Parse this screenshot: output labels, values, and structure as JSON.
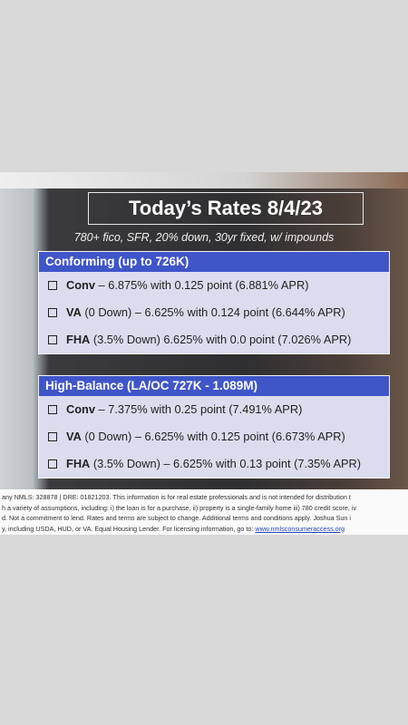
{
  "title": "Today’s Rates 8/4/23",
  "subtitle": "780+ fico, SFR, 20% down, 30yr fixed, w/ impounds",
  "sections": [
    {
      "header": "Conforming (up to 726K)",
      "rows": [
        {
          "label": "Conv",
          "text": " – 6.875% with 0.125 point (6.881% APR)"
        },
        {
          "label": "VA",
          "text": " (0 Down) – 6.625% with 0.124 point (6.644% APR)"
        },
        {
          "label": "FHA",
          "text": " (3.5% Down) 6.625% with 0.0 point (7.026% APR)"
        }
      ]
    },
    {
      "header": "High-Balance (LA/OC 727K - 1.089M)",
      "rows": [
        {
          "label": "Conv",
          "text": " – 7.375% with 0.25 point (7.491% APR)"
        },
        {
          "label": "VA",
          "text": " (0 Down) – 6.625% with 0.125 point (6.673% APR)"
        },
        {
          "label": "FHA",
          "text": " (3.5% Down) – 6.625% with 0.13 point (7.35% APR)"
        }
      ]
    }
  ],
  "disclaimer": {
    "lines": [
      "any NMLS: 328878 | DRE: 01821203. This information is for real estate professionals and is not intended for distribution t",
      "h a variety of assumptions, including: i) the loan is for a purchase, ii) property is a single-family home iii) 780 credit score, iv",
      "d. Not a commitment to lend. Rates and terms are subject to change. Additional terms and conditions apply. Joshua Sun i",
      "y, including USDA, HUD, or VA. Equal Housing Lender. For licensing information, go to: "
    ],
    "link": "www.nmlsconsumeraccess.org"
  }
}
